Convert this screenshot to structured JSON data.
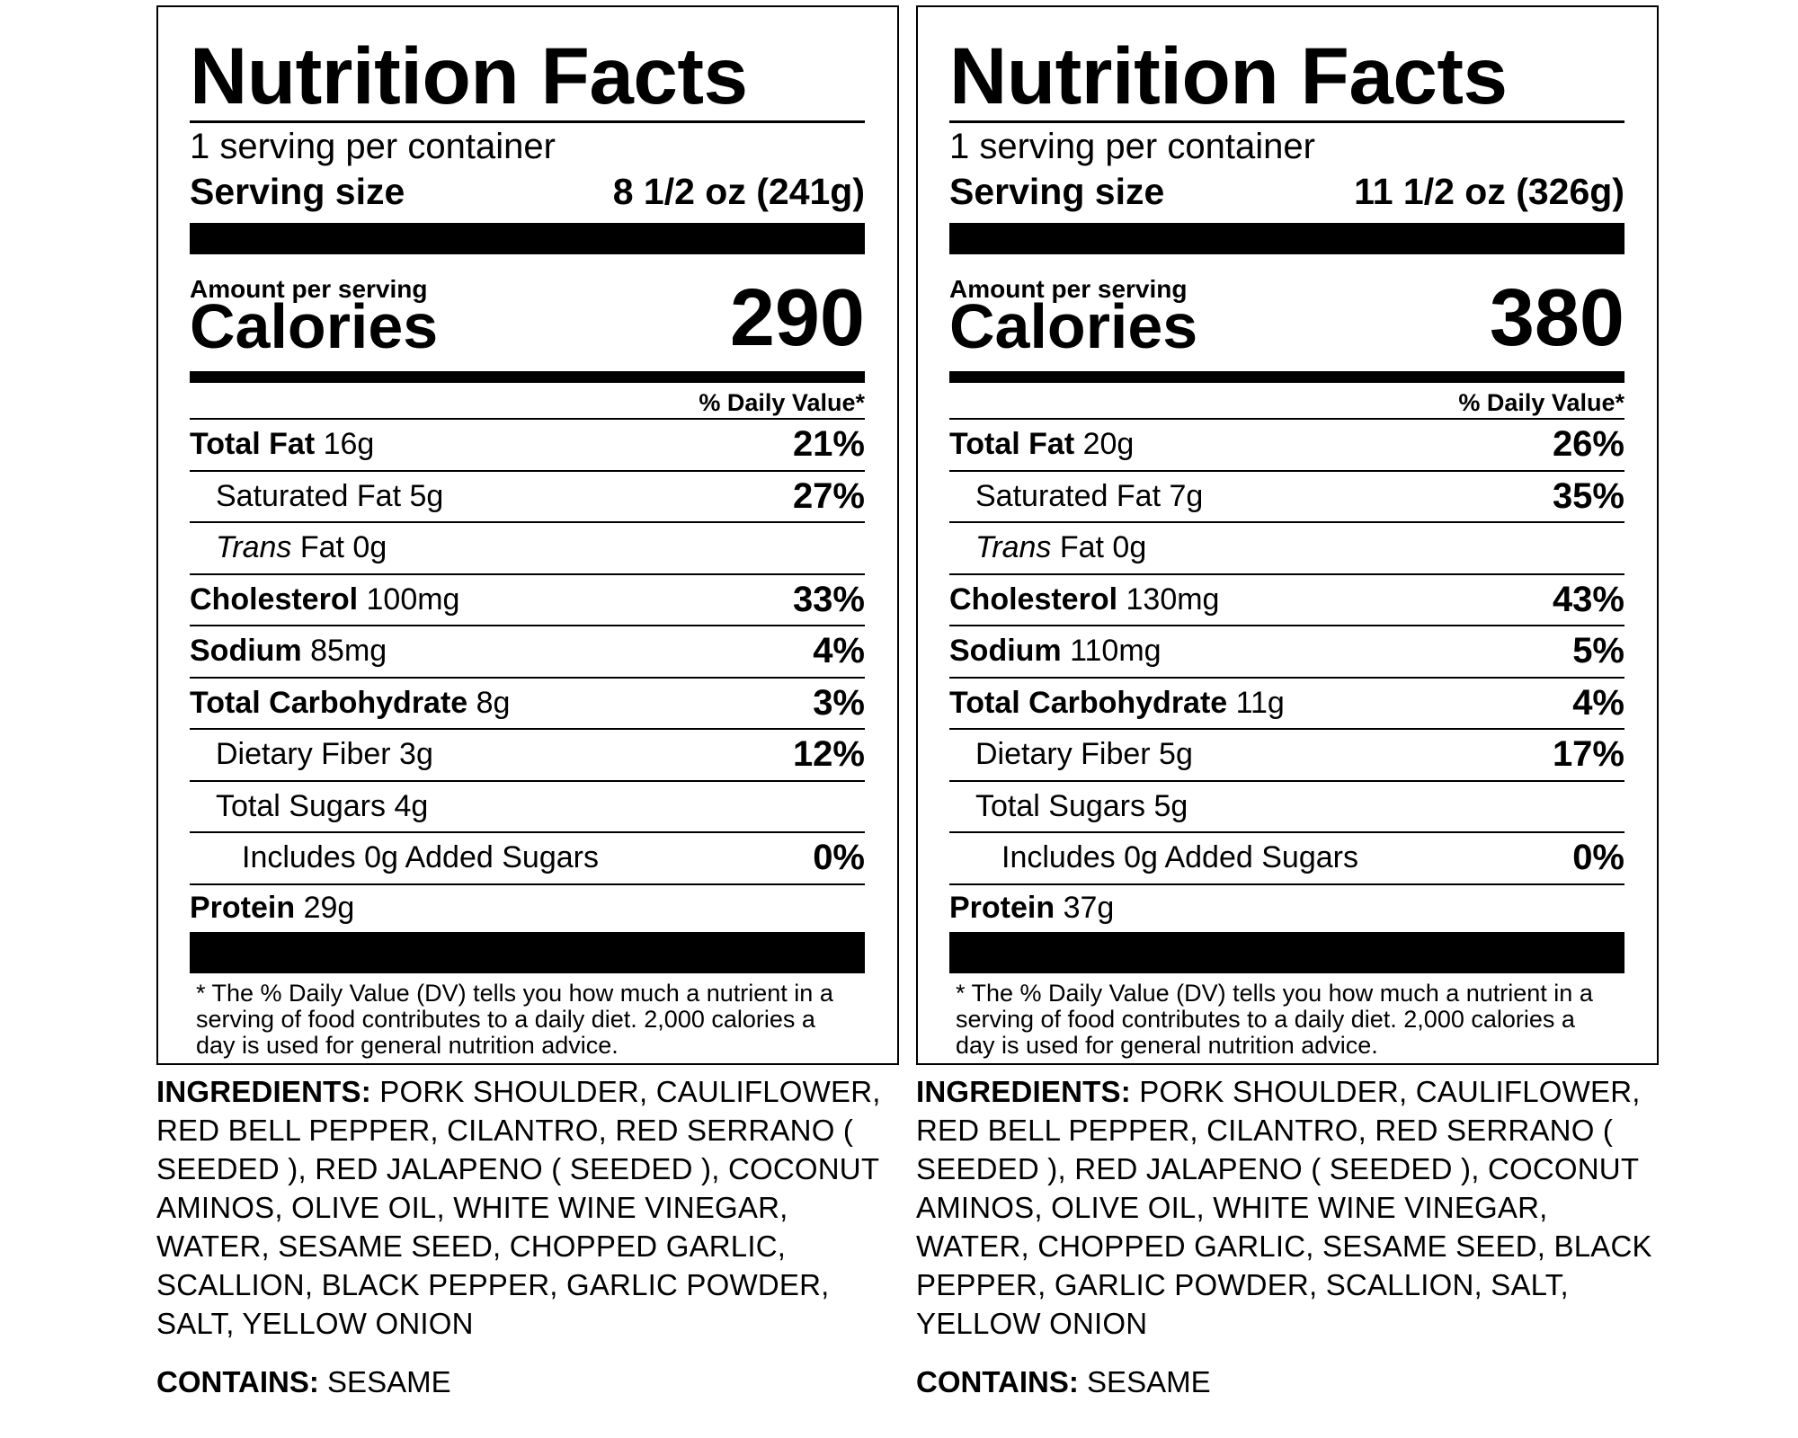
{
  "labels": [
    {
      "title": "Nutrition Facts",
      "servings_per_container": "1 serving per container",
      "serving_size_label": "Serving size",
      "serving_size_value": "8 1/2 oz (241g)",
      "amount_per_serving": "Amount per serving",
      "calories_label": "Calories",
      "calories_value": "290",
      "dv_header": "% Daily Value*",
      "nutrients": {
        "total_fat": {
          "name": "Total Fat",
          "amount": "16g",
          "dv": "21%"
        },
        "saturated_fat": {
          "name": "Saturated Fat 5g",
          "dv": "27%"
        },
        "trans_fat": {
          "name_italic": "Trans",
          "name_rest": " Fat 0g"
        },
        "cholesterol": {
          "name": "Cholesterol",
          "amount": "100mg",
          "dv": "33%"
        },
        "sodium": {
          "name": "Sodium",
          "amount": "85mg",
          "dv": "4%"
        },
        "total_carbohydrate": {
          "name": "Total Carbohydrate",
          "amount": "8g",
          "dv": "3%"
        },
        "dietary_fiber": {
          "name": "Dietary Fiber 3g",
          "dv": "12%"
        },
        "total_sugars": {
          "name": "Total Sugars 4g"
        },
        "added_sugars": {
          "name": "Includes 0g Added Sugars",
          "dv": "0%"
        },
        "protein": {
          "name": "Protein",
          "amount": "29g"
        }
      },
      "footnote": "* The % Daily Value (DV) tells you how much a nutrient in a serving of food contributes to a daily diet. 2,000 calories a day is used for general nutrition advice.",
      "ingredients_label": "INGREDIENTS:",
      "ingredients_text": "PORK SHOULDER, CAULIFLOWER, RED BELL PEPPER, CILANTRO, RED SERRANO ( SEEDED ), RED JALAPENO ( SEEDED ), COCONUT AMINOS, OLIVE OIL, WHITE WINE VINEGAR, WATER, SESAME SEED, CHOPPED GARLIC, SCALLION, BLACK PEPPER, GARLIC POWDER, SALT, YELLOW ONION",
      "contains_label": "CONTAINS:",
      "contains_text": "SESAME"
    },
    {
      "title": "Nutrition Facts",
      "servings_per_container": "1 serving per container",
      "serving_size_label": "Serving size",
      "serving_size_value": "11 1/2 oz (326g)",
      "amount_per_serving": "Amount per serving",
      "calories_label": "Calories",
      "calories_value": "380",
      "dv_header": "% Daily Value*",
      "nutrients": {
        "total_fat": {
          "name": "Total Fat",
          "amount": "20g",
          "dv": "26%"
        },
        "saturated_fat": {
          "name": "Saturated Fat 7g",
          "dv": "35%"
        },
        "trans_fat": {
          "name_italic": "Trans",
          "name_rest": " Fat 0g"
        },
        "cholesterol": {
          "name": "Cholesterol",
          "amount": "130mg",
          "dv": "43%"
        },
        "sodium": {
          "name": "Sodium",
          "amount": "110mg",
          "dv": "5%"
        },
        "total_carbohydrate": {
          "name": "Total Carbohydrate",
          "amount": "11g",
          "dv": "4%"
        },
        "dietary_fiber": {
          "name": "Dietary Fiber 5g",
          "dv": "17%"
        },
        "total_sugars": {
          "name": "Total Sugars 5g"
        },
        "added_sugars": {
          "name": "Includes 0g Added Sugars",
          "dv": "0%"
        },
        "protein": {
          "name": "Protein",
          "amount": "37g"
        }
      },
      "footnote": "* The % Daily Value (DV) tells you how much a nutrient in a serving of food contributes to a daily diet. 2,000 calories a day is used for general nutrition advice.",
      "ingredients_label": "INGREDIENTS:",
      "ingredients_text": "PORK SHOULDER, CAULIFLOWER, RED BELL PEPPER, CILANTRO, RED SERRANO ( SEEDED ), RED JALAPENO ( SEEDED ), COCONUT AMINOS, OLIVE OIL, WHITE WINE VINEGAR, WATER, CHOPPED GARLIC, SESAME SEED, BLACK PEPPER, GARLIC POWDER, SCALLION, SALT, YELLOW ONION",
      "contains_label": "CONTAINS:",
      "contains_text": "SESAME"
    }
  ]
}
